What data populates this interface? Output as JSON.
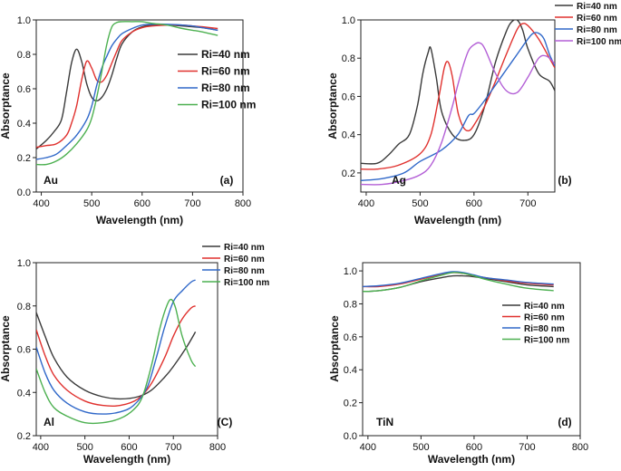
{
  "chart_data": [
    {
      "type": "line",
      "panel_label": "(a)",
      "material": "Au",
      "xlabel": "Wavelength (nm)",
      "ylabel": "Absorptance",
      "xlim": [
        390,
        800
      ],
      "ylim": [
        0.0,
        1.0
      ],
      "xticks": [
        400,
        500,
        600,
        700,
        800
      ],
      "yticks": [
        0.0,
        0.2,
        0.4,
        0.6,
        0.8,
        1.0
      ],
      "legend_position": "right",
      "series": [
        {
          "name": "Ri=40 nm",
          "color": "#3a3a3a",
          "x": [
            390,
            410,
            425,
            440,
            450,
            460,
            470,
            480,
            490,
            500,
            510,
            520,
            530,
            540,
            550,
            560,
            580,
            600,
            620,
            650,
            680,
            700,
            720,
            750
          ],
          "y": [
            0.25,
            0.3,
            0.35,
            0.42,
            0.58,
            0.75,
            0.83,
            0.76,
            0.63,
            0.55,
            0.53,
            0.55,
            0.6,
            0.68,
            0.78,
            0.86,
            0.93,
            0.96,
            0.97,
            0.97,
            0.965,
            0.96,
            0.955,
            0.94
          ]
        },
        {
          "name": "Ri=60 nm",
          "color": "#e0312e",
          "x": [
            390,
            410,
            430,
            450,
            460,
            470,
            480,
            490,
            500,
            510,
            520,
            530,
            540,
            550,
            560,
            580,
            600,
            620,
            650,
            680,
            700,
            720,
            750
          ],
          "y": [
            0.26,
            0.27,
            0.28,
            0.33,
            0.4,
            0.5,
            0.65,
            0.76,
            0.72,
            0.65,
            0.64,
            0.68,
            0.75,
            0.82,
            0.88,
            0.93,
            0.955,
            0.965,
            0.97,
            0.97,
            0.965,
            0.96,
            0.95
          ]
        },
        {
          "name": "Ri=80 nm",
          "color": "#3068c9",
          "x": [
            390,
            410,
            430,
            450,
            470,
            490,
            500,
            510,
            520,
            530,
            540,
            550,
            560,
            580,
            600,
            620,
            650,
            680,
            700,
            720,
            750
          ],
          "y": [
            0.19,
            0.2,
            0.22,
            0.27,
            0.33,
            0.42,
            0.5,
            0.62,
            0.72,
            0.79,
            0.85,
            0.89,
            0.92,
            0.95,
            0.97,
            0.975,
            0.975,
            0.97,
            0.965,
            0.955,
            0.94
          ]
        },
        {
          "name": "Ri=100 nm",
          "color": "#4cb050",
          "x": [
            390,
            410,
            430,
            450,
            470,
            490,
            500,
            510,
            520,
            530,
            540,
            550,
            560,
            580,
            600,
            620,
            650,
            680,
            700,
            720,
            750
          ],
          "y": [
            0.16,
            0.16,
            0.18,
            0.22,
            0.28,
            0.36,
            0.43,
            0.55,
            0.7,
            0.86,
            0.96,
            0.985,
            0.99,
            0.99,
            0.99,
            0.98,
            0.97,
            0.95,
            0.94,
            0.93,
            0.91
          ]
        }
      ]
    },
    {
      "type": "line",
      "panel_label": "(b)",
      "material": "Ag",
      "xlabel": "Wavelength (nm)",
      "ylabel": "Absorptance",
      "xlim": [
        390,
        750
      ],
      "ylim": [
        0.1,
        1.0
      ],
      "xticks": [
        400,
        500,
        600,
        700
      ],
      "yticks": [
        0.2,
        0.4,
        0.6,
        0.8,
        1.0
      ],
      "legend_position": "top-right",
      "series": [
        {
          "name": "Ri=40 nm",
          "color": "#3a3a3a",
          "x": [
            390,
            420,
            440,
            460,
            480,
            495,
            505,
            515,
            520,
            530,
            540,
            560,
            580,
            600,
            620,
            640,
            660,
            670,
            680,
            690,
            700,
            720,
            740,
            750
          ],
          "y": [
            0.25,
            0.25,
            0.29,
            0.35,
            0.4,
            0.55,
            0.72,
            0.83,
            0.85,
            0.7,
            0.52,
            0.4,
            0.37,
            0.4,
            0.55,
            0.78,
            0.94,
            0.99,
            1.0,
            0.95,
            0.85,
            0.72,
            0.68,
            0.63
          ]
        },
        {
          "name": "Ri=60 nm",
          "color": "#e0312e",
          "x": [
            390,
            420,
            460,
            500,
            520,
            535,
            545,
            552,
            560,
            570,
            580,
            590,
            600,
            620,
            640,
            660,
            680,
            690,
            700,
            720,
            740,
            750
          ],
          "y": [
            0.22,
            0.22,
            0.24,
            0.3,
            0.4,
            0.6,
            0.75,
            0.78,
            0.7,
            0.52,
            0.44,
            0.42,
            0.45,
            0.55,
            0.68,
            0.82,
            0.95,
            0.98,
            0.97,
            0.9,
            0.8,
            0.75
          ]
        },
        {
          "name": "Ri=80 nm",
          "color": "#3068c9",
          "x": [
            390,
            430,
            470,
            500,
            540,
            570,
            590,
            600,
            620,
            640,
            660,
            680,
            700,
            710,
            720,
            730,
            740,
            750
          ],
          "y": [
            0.16,
            0.17,
            0.2,
            0.26,
            0.32,
            0.4,
            0.5,
            0.51,
            0.58,
            0.66,
            0.74,
            0.82,
            0.9,
            0.93,
            0.93,
            0.9,
            0.82,
            0.76
          ]
        },
        {
          "name": "Ri=100 nm",
          "color": "#b35fd6",
          "x": [
            390,
            430,
            470,
            500,
            520,
            540,
            560,
            570,
            580,
            590,
            600,
            610,
            620,
            640,
            660,
            680,
            700,
            720,
            735,
            750
          ],
          "y": [
            0.14,
            0.14,
            0.16,
            0.19,
            0.24,
            0.36,
            0.55,
            0.66,
            0.76,
            0.84,
            0.87,
            0.88,
            0.85,
            0.72,
            0.63,
            0.62,
            0.7,
            0.8,
            0.81,
            0.77
          ]
        }
      ]
    },
    {
      "type": "line",
      "panel_label": "(C)",
      "material": "Al",
      "xlabel": "Wavelength (nm)",
      "ylabel": "Absorptance",
      "xlim": [
        390,
        800
      ],
      "ylim": [
        0.2,
        1.0
      ],
      "xticks": [
        400,
        500,
        600,
        700,
        800
      ],
      "yticks": [
        0.2,
        0.4,
        0.6,
        0.8,
        1.0
      ],
      "legend_position": "top-right",
      "series": [
        {
          "name": "Ri=40 nm",
          "color": "#3a3a3a",
          "x": [
            390,
            410,
            430,
            460,
            500,
            540,
            580,
            620,
            650,
            680,
            700,
            730,
            750
          ],
          "y": [
            0.77,
            0.66,
            0.56,
            0.47,
            0.41,
            0.38,
            0.37,
            0.38,
            0.41,
            0.47,
            0.52,
            0.61,
            0.68
          ]
        },
        {
          "name": "Ri=60 nm",
          "color": "#e0312e",
          "x": [
            390,
            410,
            430,
            460,
            500,
            540,
            580,
            620,
            650,
            680,
            700,
            720,
            740,
            750
          ],
          "y": [
            0.69,
            0.57,
            0.48,
            0.41,
            0.36,
            0.34,
            0.34,
            0.37,
            0.44,
            0.56,
            0.66,
            0.74,
            0.79,
            0.8
          ]
        },
        {
          "name": "Ri=80 nm",
          "color": "#3068c9",
          "x": [
            390,
            410,
            430,
            460,
            500,
            540,
            580,
            610,
            640,
            660,
            680,
            700,
            720,
            740,
            750
          ],
          "y": [
            0.61,
            0.49,
            0.41,
            0.35,
            0.31,
            0.3,
            0.31,
            0.34,
            0.42,
            0.55,
            0.7,
            0.82,
            0.87,
            0.91,
            0.92
          ]
        },
        {
          "name": "Ri=100 nm",
          "color": "#4cb050",
          "x": [
            390,
            410,
            430,
            460,
            500,
            540,
            580,
            610,
            630,
            650,
            670,
            685,
            695,
            705,
            720,
            740,
            750
          ],
          "y": [
            0.51,
            0.4,
            0.33,
            0.29,
            0.26,
            0.26,
            0.28,
            0.32,
            0.38,
            0.52,
            0.7,
            0.8,
            0.83,
            0.79,
            0.66,
            0.55,
            0.52
          ]
        }
      ]
    },
    {
      "type": "line",
      "panel_label": "(d)",
      "material": "TiN",
      "xlabel": "Wavelength (nm)",
      "ylabel": "Absorptance",
      "xlim": [
        390,
        800
      ],
      "ylim": [
        0.0,
        1.05
      ],
      "xticks": [
        400,
        500,
        600,
        700,
        800
      ],
      "yticks": [
        0.0,
        0.2,
        0.4,
        0.6,
        0.8,
        1.0
      ],
      "legend_position": "right",
      "series": [
        {
          "name": "Ri=40 nm",
          "color": "#3a3a3a",
          "x": [
            390,
            420,
            460,
            500,
            540,
            560,
            580,
            600,
            620,
            660,
            700,
            750
          ],
          "y": [
            0.875,
            0.88,
            0.9,
            0.935,
            0.96,
            0.97,
            0.97,
            0.965,
            0.955,
            0.935,
            0.915,
            0.905
          ]
        },
        {
          "name": "Ri=60 nm",
          "color": "#e0312e",
          "x": [
            390,
            420,
            460,
            500,
            540,
            560,
            580,
            600,
            620,
            660,
            700,
            750
          ],
          "y": [
            0.905,
            0.905,
            0.92,
            0.95,
            0.98,
            0.99,
            0.985,
            0.97,
            0.96,
            0.94,
            0.925,
            0.915
          ]
        },
        {
          "name": "Ri=80 nm",
          "color": "#3068c9",
          "x": [
            390,
            420,
            460,
            500,
            540,
            560,
            580,
            600,
            620,
            660,
            700,
            750
          ],
          "y": [
            0.905,
            0.91,
            0.925,
            0.955,
            0.985,
            0.995,
            0.99,
            0.975,
            0.96,
            0.945,
            0.93,
            0.92
          ]
        },
        {
          "name": "Ri=100 nm",
          "color": "#4cb050",
          "x": [
            390,
            420,
            460,
            500,
            540,
            560,
            580,
            600,
            620,
            660,
            700,
            750
          ],
          "y": [
            0.875,
            0.88,
            0.9,
            0.94,
            0.975,
            0.99,
            0.985,
            0.97,
            0.95,
            0.92,
            0.895,
            0.88
          ]
        }
      ]
    }
  ]
}
